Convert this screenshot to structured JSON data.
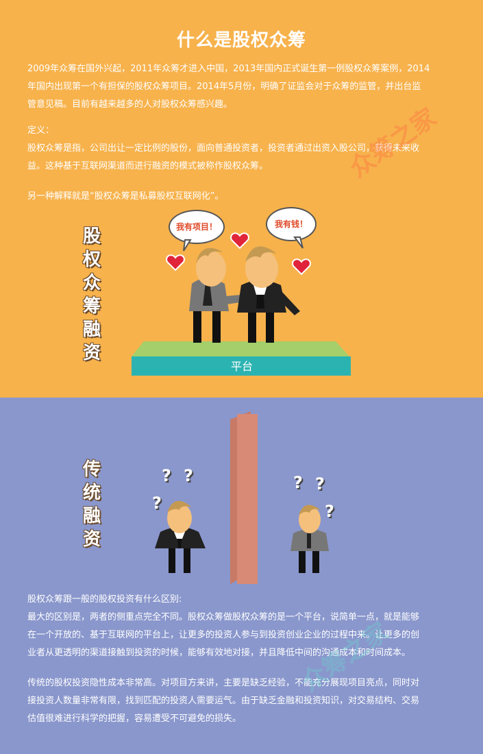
{
  "top": {
    "title": "什么是股权众筹",
    "intro_lines": [
      "2009年众筹在国外兴起，2011年众筹才进入中国，2013年国内正式诞生第一例股权众筹案例，2014",
      "年国内出现第一个有担保的股权众筹项目。2014年5月份，明确了证监会对于众筹的监管，并出台监",
      "管意见稿。目前有越来越多的人对股权众筹感兴趣。"
    ],
    "definition_label": "定义：",
    "definition_lines": [
      "股权众筹是指，公司出让一定比例的股份，面向普通投资者，投资者通过出资入股公司，获得未来收",
      "益。这种基于互联网渠道而进行融资的模式被称作股权众筹。"
    ],
    "alt_explanation": "另一种解释就是“股权众筹是私募股权互联网化”。",
    "vertical_title": [
      "股",
      "权",
      "众",
      "筹",
      "融",
      "资"
    ],
    "bubble_left": "我有项目！",
    "bubble_right": "我有钱！",
    "platform_label": "平台",
    "watermark": "众筹之家"
  },
  "bottom": {
    "vertical_title": [
      "传",
      "统",
      "融",
      "资"
    ],
    "question_mark": "?",
    "difference_title": "股权众筹跟一般的股权投资有什么区别:",
    "difference_lines": [
      "最大的区别是，两者的侧重点完全不同。股权众筹做股权众筹的是一个平台，说简单一点，就是能够",
      "在一个开放的、基于互联网的平台上，让更多的投资人参与到投资创业企业的过程中来。让更多的创",
      "业者从更透明的渠道接触到投资的时候，能够有效地对接，并且降低中间的沟通成本和时间成本。"
    ],
    "traditional_lines": [
      "传统的股权投资隐性成本非常高。对项目方来讲，主要是缺乏经验，不能充分展现项目亮点，同时对",
      "接投资人数量非常有限，找到匹配的投资人需要运气。由于缺乏金融和投资知识，对交易结构、交易",
      "估值很难进行科学的把握，容易遭受不可避免的损失。"
    ],
    "watermark": "众筹之家"
  },
  "colors": {
    "top_bg": "#f7b24c",
    "bottom_bg": "#8a97cc",
    "platform_top": "#a4cf6a",
    "platform_side": "#2bb3b1",
    "wall": "#d98a76"
  }
}
